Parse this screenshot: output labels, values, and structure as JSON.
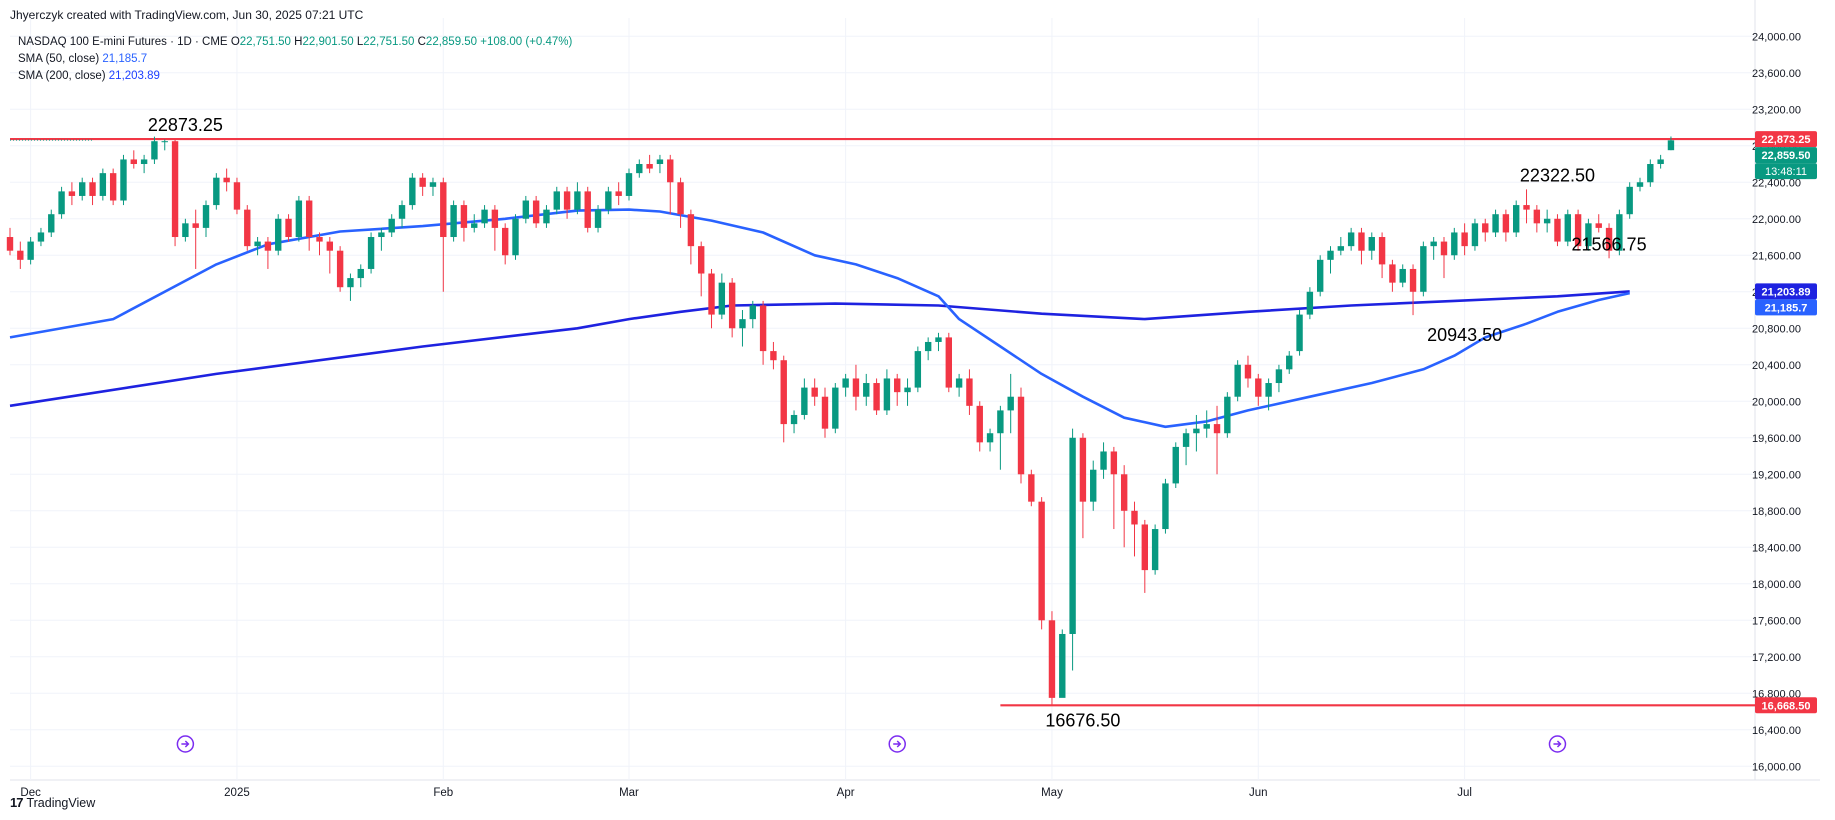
{
  "header": {
    "credit": "Jhyerczyk created with TradingView.com, Jun 30, 2025 07:21 UTC"
  },
  "legend": {
    "symbol": "NASDAQ 100 E-mini Futures · 1D · CME",
    "o_label": "O",
    "o_value": "22,751.50",
    "h_label": "H",
    "h_value": "22,901.50",
    "l_label": "L",
    "l_value": "22,751.50",
    "c_label": "C",
    "c_value": "22,859.50",
    "change": "+108.00 (+0.47%)",
    "sma50_label": "SMA (50, close)",
    "sma50_value": "21,185.7",
    "sma200_label": "SMA (200, close)",
    "sma200_value": "21,203.89"
  },
  "footer": {
    "brand": "TradingView",
    "logo": "17"
  },
  "colors": {
    "up": "#089981",
    "down": "#f23645",
    "sma50": "#2962ff",
    "sma200": "#1e22e0",
    "line": "#f23645",
    "event": "#7b2cf0"
  },
  "icons": {
    "event": "arrow-circle-icon",
    "brand": "tradingview-logo-icon"
  },
  "chart_data": {
    "type": "candlestick",
    "y_ticks": [
      24000,
      23600,
      23200,
      22800,
      22400,
      22000,
      21600,
      21200,
      20800,
      20400,
      20000,
      19600,
      19200,
      18800,
      18400,
      18000,
      17600,
      17200,
      16800,
      16400,
      16000
    ],
    "y_tick_labels": [
      "24,000.00",
      "23,600.00",
      "23,200.00",
      "22,800.00",
      "22,400.00",
      "22,000.00",
      "21,600.00",
      "21,200.00",
      "20,800.00",
      "20,400.00",
      "20,000.00",
      "19,600.00",
      "19,200.00",
      "18,800.00",
      "18,400.00",
      "18,000.00",
      "17,600.00",
      "17,200.00",
      "16,800.00",
      "16,400.00",
      "16,000.00"
    ],
    "ylim": [
      15850,
      24200
    ],
    "x_ticks": [
      {
        "label": "Dec",
        "index": 2
      },
      {
        "label": "2025",
        "index": 22
      },
      {
        "label": "Feb",
        "index": 42
      },
      {
        "label": "Mar",
        "index": 60
      },
      {
        "label": "Apr",
        "index": 81
      },
      {
        "label": "May",
        "index": 101
      },
      {
        "label": "Jun",
        "index": 121
      },
      {
        "label": "Jul",
        "index": 141
      }
    ],
    "x_range": [
      0,
      158
    ],
    "candles": [
      [
        21800,
        21650,
        21900,
        21600
      ],
      [
        21650,
        21550,
        21750,
        21450
      ],
      [
        21550,
        21750,
        21800,
        21500
      ],
      [
        21750,
        21850,
        21900,
        21700
      ],
      [
        21850,
        22050,
        22100,
        21800
      ],
      [
        22050,
        22300,
        22350,
        22000
      ],
      [
        22300,
        22250,
        22400,
        22150
      ],
      [
        22250,
        22400,
        22450,
        22200
      ],
      [
        22400,
        22250,
        22450,
        22150
      ],
      [
        22250,
        22500,
        22550,
        22200
      ],
      [
        22500,
        22200,
        22550,
        22150
      ],
      [
        22200,
        22650,
        22700,
        22150
      ],
      [
        22650,
        22600,
        22750,
        22550
      ],
      [
        22600,
        22650,
        22700,
        22500
      ],
      [
        22650,
        22850,
        22900,
        22600
      ],
      [
        22850,
        22850,
        22870,
        22750
      ],
      [
        22850,
        21800,
        22870,
        21700
      ],
      [
        21800,
        21950,
        22000,
        21750
      ],
      [
        21950,
        21900,
        22100,
        21450
      ],
      [
        21900,
        22150,
        22200,
        21800
      ],
      [
        22150,
        22450,
        22500,
        22100
      ],
      [
        22450,
        22400,
        22550,
        22300
      ],
      [
        22400,
        22100,
        22450,
        22050
      ],
      [
        22100,
        21700,
        22150,
        21650
      ],
      [
        21700,
        21750,
        21800,
        21600
      ],
      [
        21750,
        21650,
        21800,
        21450
      ],
      [
        21650,
        22000,
        22050,
        21600
      ],
      [
        22000,
        21800,
        22050,
        21750
      ],
      [
        21800,
        22200,
        22250,
        21750
      ],
      [
        22200,
        21800,
        22250,
        21650
      ],
      [
        21800,
        21750,
        21850,
        21600
      ],
      [
        21750,
        21650,
        21800,
        21400
      ],
      [
        21650,
        21250,
        21700,
        21200
      ],
      [
        21250,
        21350,
        21400,
        21100
      ],
      [
        21350,
        21450,
        21500,
        21250
      ],
      [
        21450,
        21800,
        21850,
        21400
      ],
      [
        21800,
        21850,
        21900,
        21650
      ],
      [
        21850,
        22000,
        22050,
        21800
      ],
      [
        22000,
        22150,
        22200,
        21900
      ],
      [
        22150,
        22450,
        22500,
        22100
      ],
      [
        22450,
        22350,
        22500,
        22250
      ],
      [
        22350,
        22400,
        22450,
        22250
      ],
      [
        22400,
        21800,
        22450,
        21200
      ],
      [
        21800,
        22150,
        22200,
        21750
      ],
      [
        22150,
        21900,
        22200,
        21750
      ],
      [
        21900,
        21950,
        22050,
        21850
      ],
      [
        21950,
        22100,
        22150,
        21900
      ],
      [
        22100,
        21900,
        22150,
        21650
      ],
      [
        21900,
        21600,
        21950,
        21500
      ],
      [
        21600,
        22000,
        22050,
        21550
      ],
      [
        22000,
        22200,
        22250,
        21950
      ],
      [
        22200,
        21950,
        22250,
        21900
      ],
      [
        21950,
        22100,
        22150,
        21900
      ],
      [
        22100,
        22300,
        22350,
        22050
      ],
      [
        22300,
        22100,
        22350,
        22000
      ],
      [
        22100,
        22300,
        22400,
        22050
      ],
      [
        22300,
        21900,
        22350,
        21850
      ],
      [
        21900,
        22100,
        22150,
        21850
      ],
      [
        22100,
        22300,
        22350,
        22050
      ],
      [
        22300,
        22250,
        22400,
        22150
      ],
      [
        22250,
        22500,
        22550,
        22200
      ],
      [
        22500,
        22600,
        22650,
        22450
      ],
      [
        22600,
        22550,
        22700,
        22500
      ],
      [
        22600,
        22650,
        22700,
        22500
      ],
      [
        22650,
        22400,
        22700,
        22050
      ],
      [
        22400,
        22050,
        22450,
        21900
      ],
      [
        22050,
        21700,
        22100,
        21500
      ],
      [
        21700,
        21400,
        21750,
        21150
      ],
      [
        21400,
        20950,
        21450,
        20800
      ],
      [
        20950,
        21300,
        21400,
        20900
      ],
      [
        21300,
        20800,
        21350,
        20700
      ],
      [
        20800,
        20900,
        21000,
        20600
      ],
      [
        20900,
        21050,
        21100,
        20800
      ],
      [
        21050,
        20550,
        21100,
        20400
      ],
      [
        20550,
        20450,
        20650,
        20350
      ],
      [
        20450,
        19750,
        20500,
        19550
      ],
      [
        19750,
        19850,
        19900,
        19650
      ],
      [
        19850,
        20150,
        20250,
        19800
      ],
      [
        20150,
        20050,
        20250,
        19950
      ],
      [
        20050,
        19700,
        20150,
        19600
      ],
      [
        19700,
        20150,
        20200,
        19650
      ],
      [
        20150,
        20250,
        20300,
        20050
      ],
      [
        20250,
        20050,
        20400,
        19900
      ],
      [
        20050,
        20200,
        20300,
        19950
      ],
      [
        20200,
        19900,
        20250,
        19850
      ],
      [
        19900,
        20250,
        20350,
        19850
      ],
      [
        20250,
        20100,
        20300,
        19950
      ],
      [
        20100,
        20150,
        20250,
        19950
      ],
      [
        20150,
        20550,
        20600,
        20100
      ],
      [
        20550,
        20650,
        20700,
        20450
      ],
      [
        20650,
        20700,
        20750,
        20550
      ],
      [
        20700,
        20150,
        20750,
        20100
      ],
      [
        20150,
        20250,
        20300,
        20050
      ],
      [
        20250,
        19950,
        20350,
        19850
      ],
      [
        19950,
        19550,
        20000,
        19450
      ],
      [
        19550,
        19650,
        19700,
        19450
      ],
      [
        19650,
        19900,
        19950,
        19250
      ],
      [
        19900,
        20050,
        20300,
        19650
      ],
      [
        20050,
        19200,
        20150,
        19100
      ],
      [
        19200,
        18900,
        19250,
        18850
      ],
      [
        18900,
        17600,
        18950,
        17500
      ],
      [
        17600,
        16750,
        17700,
        16677
      ],
      [
        16750,
        17450,
        17500,
        16900
      ],
      [
        17450,
        19600,
        19700,
        17050
      ],
      [
        19600,
        18900,
        19650,
        18500
      ],
      [
        18900,
        19250,
        19350,
        18800
      ],
      [
        19250,
        19450,
        19550,
        19150
      ],
      [
        19450,
        19200,
        19500,
        18600
      ],
      [
        19200,
        18800,
        19300,
        18400
      ],
      [
        18800,
        18650,
        18900,
        18300
      ],
      [
        18650,
        18150,
        18700,
        17900
      ],
      [
        18150,
        18600,
        18650,
        18100
      ],
      [
        18600,
        19100,
        19150,
        18550
      ],
      [
        19100,
        19500,
        19550,
        19050
      ],
      [
        19500,
        19650,
        19700,
        19300
      ],
      [
        19650,
        19700,
        19850,
        19450
      ],
      [
        19700,
        19750,
        19900,
        19600
      ],
      [
        19750,
        19650,
        19950,
        19200
      ],
      [
        19650,
        20050,
        20100,
        19600
      ],
      [
        20050,
        20400,
        20450,
        20000
      ],
      [
        20400,
        20250,
        20500,
        20150
      ],
      [
        20250,
        20050,
        20300,
        19950
      ],
      [
        20050,
        20200,
        20250,
        19900
      ],
      [
        20200,
        20350,
        20400,
        20100
      ],
      [
        20350,
        20500,
        20550,
        20300
      ],
      [
        20550,
        20950,
        21000,
        20500
      ],
      [
        20950,
        21200,
        21250,
        20900
      ],
      [
        21200,
        21550,
        21600,
        21150
      ],
      [
        21550,
        21650,
        21700,
        21400
      ],
      [
        21650,
        21700,
        21800,
        21600
      ],
      [
        21700,
        21850,
        21900,
        21650
      ],
      [
        21850,
        21650,
        21900,
        21500
      ],
      [
        21650,
        21800,
        21850,
        21550
      ],
      [
        21800,
        21500,
        21850,
        21350
      ],
      [
        21500,
        21300,
        21550,
        21200
      ],
      [
        21300,
        21450,
        21500,
        21250
      ],
      [
        21450,
        21200,
        21500,
        20944
      ],
      [
        21200,
        21700,
        21750,
        21150
      ],
      [
        21700,
        21750,
        21800,
        21550
      ],
      [
        21750,
        21600,
        21800,
        21350
      ],
      [
        21600,
        21850,
        21900,
        21550
      ],
      [
        21850,
        21700,
        21950,
        21600
      ],
      [
        21700,
        21950,
        22000,
        21650
      ],
      [
        21950,
        21850,
        22000,
        21750
      ],
      [
        21850,
        22050,
        22100,
        21800
      ],
      [
        22050,
        21850,
        22100,
        21750
      ],
      [
        21850,
        22150,
        22200,
        21800
      ],
      [
        22150,
        22100,
        22322,
        21950
      ],
      [
        22100,
        21950,
        22150,
        21850
      ],
      [
        21950,
        22000,
        22100,
        21850
      ],
      [
        22000,
        21750,
        22050,
        21700
      ],
      [
        21750,
        22050,
        22100,
        21700
      ],
      [
        22050,
        21700,
        22100,
        21650
      ],
      [
        21700,
        21950,
        22000,
        21650
      ],
      [
        21950,
        21900,
        22050,
        21850
      ],
      [
        21900,
        21650,
        21950,
        21567
      ],
      [
        21650,
        22050,
        22100,
        21600
      ],
      [
        22050,
        22350,
        22400,
        22000
      ],
      [
        22350,
        22400,
        22450,
        22300
      ],
      [
        22400,
        22600,
        22650,
        22350
      ],
      [
        22600,
        22650,
        22700,
        22550
      ],
      [
        22751.5,
        22859.5,
        22901.5,
        22751.5
      ]
    ],
    "sma50": [
      [
        0,
        20700
      ],
      [
        10,
        20900
      ],
      [
        20,
        21500
      ],
      [
        25,
        21720
      ],
      [
        32,
        21860
      ],
      [
        40,
        21920
      ],
      [
        48,
        22000
      ],
      [
        55,
        22090
      ],
      [
        60,
        22100
      ],
      [
        63,
        22080
      ],
      [
        68,
        21980
      ],
      [
        73,
        21850
      ],
      [
        78,
        21600
      ],
      [
        82,
        21500
      ],
      [
        86,
        21350
      ],
      [
        90,
        21150
      ],
      [
        92,
        20900
      ],
      [
        96,
        20600
      ],
      [
        100,
        20300
      ],
      [
        104,
        20050
      ],
      [
        108,
        19820
      ],
      [
        112,
        19720
      ],
      [
        116,
        19780
      ],
      [
        120,
        19900
      ],
      [
        126,
        20050
      ],
      [
        132,
        20200
      ],
      [
        137,
        20350
      ],
      [
        140,
        20500
      ],
      [
        143,
        20700
      ],
      [
        147,
        20850
      ],
      [
        150,
        20980
      ],
      [
        154,
        21110
      ],
      [
        157,
        21185.7
      ]
    ],
    "sma200": [
      [
        0,
        19950
      ],
      [
        20,
        20300
      ],
      [
        40,
        20600
      ],
      [
        55,
        20800
      ],
      [
        60,
        20900
      ],
      [
        65,
        20980
      ],
      [
        70,
        21050
      ],
      [
        80,
        21070
      ],
      [
        90,
        21050
      ],
      [
        100,
        20960
      ],
      [
        110,
        20900
      ],
      [
        120,
        20980
      ],
      [
        130,
        21050
      ],
      [
        140,
        21100
      ],
      [
        150,
        21150
      ],
      [
        157,
        21203.89
      ]
    ],
    "levels": [
      {
        "name": "resistance",
        "value": 22873.25,
        "from": 0,
        "to": 158,
        "label_text": "22,873.25"
      },
      {
        "name": "support",
        "value": 16668.5,
        "from": 96,
        "to": 158,
        "label_text": "16,668.50"
      }
    ],
    "annotations": [
      {
        "text": "22873.25",
        "index": 17,
        "value": 22873.25
      },
      {
        "text": "22322.50",
        "index": 150,
        "value": 22322.5
      },
      {
        "text": "21566.75",
        "index": 155,
        "value": 21566.75
      },
      {
        "text": "20943.50",
        "index": 141,
        "value": 20943.5
      },
      {
        "text": "16676.50",
        "index": 104,
        "value": 16676.5
      }
    ],
    "price_labels": [
      {
        "value": 22859.5,
        "text": "22,859.50",
        "kind": "last",
        "sub": "13:48:11"
      },
      {
        "value": 21203.89,
        "text": "21,203.89",
        "kind": "sma200"
      },
      {
        "value": 21185.7,
        "text": "21,185.7",
        "kind": "sma50"
      }
    ],
    "events": [
      17,
      86,
      150
    ]
  }
}
